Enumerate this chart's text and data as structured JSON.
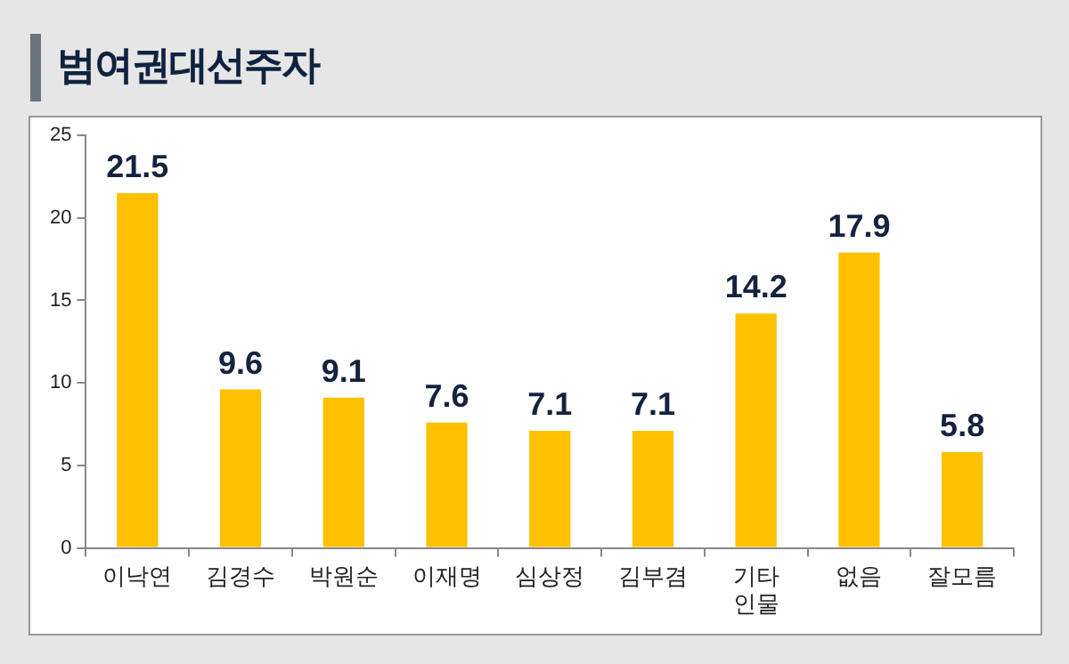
{
  "chart_data": {
    "type": "bar",
    "title": "범여권대선주자",
    "categories": [
      "이낙연",
      "김경수",
      "박원순",
      "이재명",
      "심상정",
      "김부겸",
      "기타 인물",
      "없음",
      "잘모름"
    ],
    "values": [
      21.5,
      9.6,
      9.1,
      7.6,
      7.1,
      7.1,
      14.2,
      17.9,
      5.8
    ],
    "color": "#ffc000",
    "ylim": [
      0,
      25
    ],
    "yticks": [
      0,
      5,
      10,
      15,
      20,
      25
    ],
    "grid": false,
    "legend": false,
    "data_labels": true
  }
}
